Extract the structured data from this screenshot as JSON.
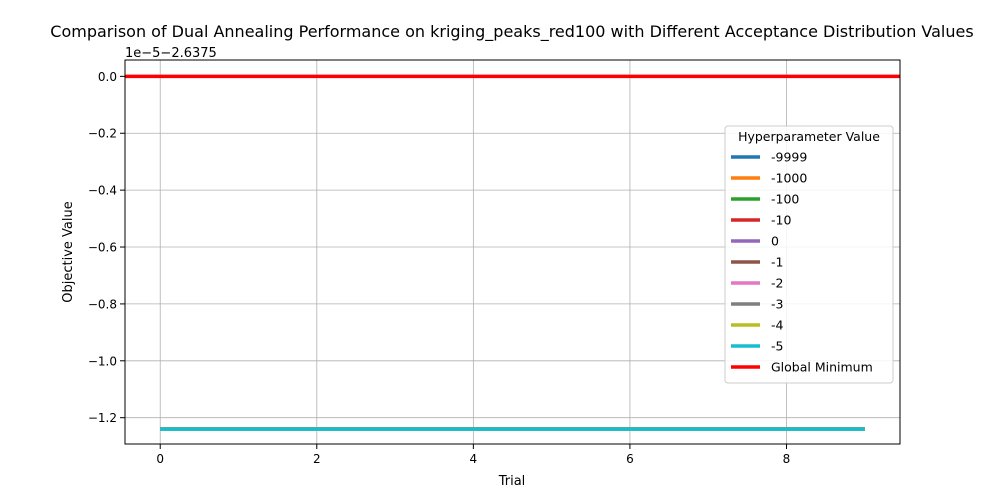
{
  "chart_data": {
    "type": "line",
    "title": "Comparison of Dual Annealing Performance on kriging_peaks_red100 with Different Acceptance Distribution Values",
    "xlabel": "Trial",
    "ylabel": "Objective Value",
    "offset_label": "1e−5−2.6375",
    "xlim": [
      -0.45,
      9.45
    ],
    "ylim": [
      -1.2925,
      0.0575
    ],
    "xticks": [
      0,
      2,
      4,
      6,
      8
    ],
    "xtick_labels": [
      "0",
      "2",
      "4",
      "6",
      "8"
    ],
    "yticks": [
      0.0,
      -0.2,
      -0.4,
      -0.6,
      -0.8,
      -1.0,
      -1.2
    ],
    "ytick_labels": [
      "0.0",
      "−0.2",
      "−0.4",
      "−0.6",
      "−0.8",
      "−1.0",
      "−1.2"
    ],
    "grid": true,
    "legend_title": "Hyperparameter Value",
    "legend_position": "center-right",
    "x": [
      0,
      1,
      2,
      3,
      4,
      5,
      6,
      7,
      8,
      9
    ],
    "series": [
      {
        "name": "-9999",
        "color": "#1f77b4",
        "values": [
          -1.24,
          -1.24,
          -1.24,
          -1.24,
          -1.24,
          -1.24,
          -1.24,
          -1.24,
          -1.24,
          -1.24
        ]
      },
      {
        "name": "-1000",
        "color": "#ff7f0e",
        "values": [
          -1.24,
          -1.24,
          -1.24,
          -1.24,
          -1.24,
          -1.24,
          -1.24,
          -1.24,
          -1.24,
          -1.24
        ]
      },
      {
        "name": "-100",
        "color": "#2ca02c",
        "values": [
          -1.24,
          -1.24,
          -1.24,
          -1.24,
          -1.24,
          -1.24,
          -1.24,
          -1.24,
          -1.24,
          -1.24
        ]
      },
      {
        "name": "-10",
        "color": "#d62728",
        "values": [
          -1.24,
          -1.24,
          -1.24,
          -1.24,
          -1.24,
          -1.24,
          -1.24,
          -1.24,
          -1.24,
          -1.24
        ]
      },
      {
        "name": "0",
        "color": "#9467bd",
        "values": [
          -1.24,
          -1.24,
          -1.24,
          -1.24,
          -1.24,
          -1.24,
          -1.24,
          -1.24,
          -1.24,
          -1.24
        ]
      },
      {
        "name": "-1",
        "color": "#8c564b",
        "values": [
          -1.24,
          -1.24,
          -1.24,
          -1.24,
          -1.24,
          -1.24,
          -1.24,
          -1.24,
          -1.24,
          -1.24
        ]
      },
      {
        "name": "-2",
        "color": "#e377c2",
        "values": [
          -1.24,
          -1.24,
          -1.24,
          -1.24,
          -1.24,
          -1.24,
          -1.24,
          -1.24,
          -1.24,
          -1.24
        ]
      },
      {
        "name": "-3",
        "color": "#7f7f7f",
        "values": [
          -1.24,
          -1.24,
          -1.24,
          -1.24,
          -1.24,
          -1.24,
          -1.24,
          -1.24,
          -1.24,
          -1.24
        ]
      },
      {
        "name": "-4",
        "color": "#bcbd22",
        "values": [
          -1.24,
          -1.24,
          -1.24,
          -1.24,
          -1.24,
          -1.24,
          -1.24,
          -1.24,
          -1.24,
          -1.24
        ]
      },
      {
        "name": "-5",
        "color": "#17becf",
        "values": [
          -1.24,
          -1.24,
          -1.24,
          -1.24,
          -1.24,
          -1.24,
          -1.24,
          -1.24,
          -1.24,
          -1.24
        ]
      }
    ],
    "reference_line": {
      "name": "Global Minimum",
      "color": "#ff0000",
      "value": 0.0,
      "style": "horizontal"
    }
  }
}
